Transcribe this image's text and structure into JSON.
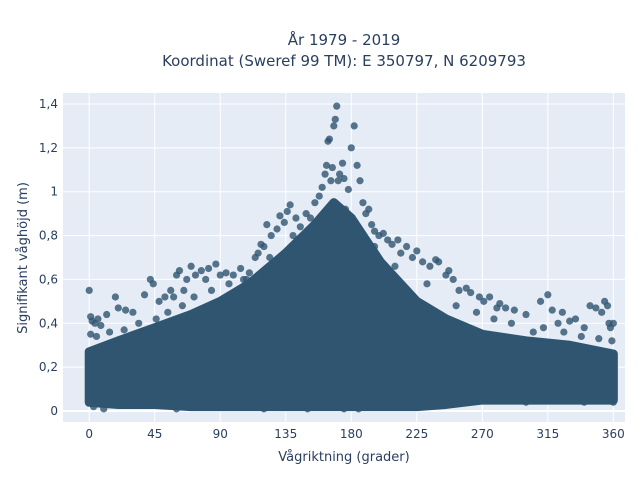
{
  "chart_data": {
    "type": "scatter",
    "title_line1": "År 1979 - 2019",
    "title_line2": "Koordinat (Sweref 99 TM): E 350797, N 6209793",
    "xlabel": "Vågriktning (grader)",
    "ylabel": "Signifikant våghöjd (m)",
    "xlim": [
      -18,
      368
    ],
    "ylim": [
      -0.05,
      1.45
    ],
    "xticks": [
      0,
      45,
      90,
      135,
      180,
      225,
      270,
      315,
      360
    ],
    "xtick_labels": [
      "0",
      "45",
      "90",
      "135",
      "180",
      "225",
      "270",
      "315",
      "360"
    ],
    "yticks": [
      0,
      0.2,
      0.4,
      0.6,
      0.8,
      1.0,
      1.2,
      1.4
    ],
    "ytick_labels": [
      "0",
      "0,2",
      "0,4",
      "0,6",
      "0,8",
      "1",
      "1,2",
      "1,4"
    ],
    "grid": true,
    "marker_color": "#2f5570",
    "plot_bg": "#e5ecf6",
    "core_band": [
      {
        "x": 0,
        "y_low": 0.04,
        "y_high": 0.27
      },
      {
        "x": 20,
        "y_low": 0.03,
        "y_high": 0.32
      },
      {
        "x": 45,
        "y_low": 0.03,
        "y_high": 0.38
      },
      {
        "x": 70,
        "y_low": 0.02,
        "y_high": 0.44
      },
      {
        "x": 90,
        "y_low": 0.02,
        "y_high": 0.5
      },
      {
        "x": 110,
        "y_low": 0.02,
        "y_high": 0.58
      },
      {
        "x": 135,
        "y_low": 0.02,
        "y_high": 0.72
      },
      {
        "x": 155,
        "y_low": 0.02,
        "y_high": 0.85
      },
      {
        "x": 168,
        "y_low": 0.02,
        "y_high": 0.95
      },
      {
        "x": 180,
        "y_low": 0.02,
        "y_high": 0.88
      },
      {
        "x": 200,
        "y_low": 0.02,
        "y_high": 0.68
      },
      {
        "x": 225,
        "y_low": 0.02,
        "y_high": 0.5
      },
      {
        "x": 245,
        "y_low": 0.03,
        "y_high": 0.42
      },
      {
        "x": 270,
        "y_low": 0.05,
        "y_high": 0.35
      },
      {
        "x": 300,
        "y_low": 0.05,
        "y_high": 0.32
      },
      {
        "x": 330,
        "y_low": 0.05,
        "y_high": 0.3
      },
      {
        "x": 360,
        "y_low": 0.05,
        "y_high": 0.26
      }
    ],
    "outlier_points": [
      [
        0,
        0.55
      ],
      [
        1,
        0.43
      ],
      [
        2,
        0.41
      ],
      [
        4,
        0.4
      ],
      [
        6,
        0.42
      ],
      [
        8,
        0.39
      ],
      [
        12,
        0.44
      ],
      [
        18,
        0.52
      ],
      [
        20,
        0.47
      ],
      [
        25,
        0.46
      ],
      [
        30,
        0.45
      ],
      [
        38,
        0.53
      ],
      [
        42,
        0.6
      ],
      [
        44,
        0.58
      ],
      [
        48,
        0.5
      ],
      [
        52,
        0.52
      ],
      [
        56,
        0.55
      ],
      [
        58,
        0.52
      ],
      [
        60,
        0.62
      ],
      [
        62,
        0.64
      ],
      [
        65,
        0.55
      ],
      [
        67,
        0.6
      ],
      [
        70,
        0.66
      ],
      [
        73,
        0.62
      ],
      [
        77,
        0.64
      ],
      [
        80,
        0.6
      ],
      [
        82,
        0.65
      ],
      [
        87,
        0.67
      ],
      [
        90,
        0.62
      ],
      [
        94,
        0.63
      ],
      [
        99,
        0.62
      ],
      [
        104,
        0.65
      ],
      [
        108,
        0.6
      ],
      [
        110,
        0.63
      ],
      [
        114,
        0.7
      ],
      [
        116,
        0.72
      ],
      [
        118,
        0.76
      ],
      [
        120,
        0.75
      ],
      [
        122,
        0.85
      ],
      [
        125,
        0.8
      ],
      [
        129,
        0.83
      ],
      [
        131,
        0.89
      ],
      [
        134,
        0.86
      ],
      [
        136,
        0.91
      ],
      [
        138,
        0.94
      ],
      [
        142,
        0.88
      ],
      [
        145,
        0.84
      ],
      [
        149,
        0.9
      ],
      [
        152,
        0.88
      ],
      [
        155,
        0.95
      ],
      [
        158,
        0.98
      ],
      [
        160,
        1.02
      ],
      [
        162,
        1.08
      ],
      [
        163,
        1.12
      ],
      [
        164,
        1.23
      ],
      [
        165,
        1.24
      ],
      [
        166,
        1.05
      ],
      [
        167,
        1.11
      ],
      [
        168,
        1.3
      ],
      [
        169,
        1.33
      ],
      [
        170,
        1.39
      ],
      [
        171,
        1.05
      ],
      [
        172,
        1.08
      ],
      [
        174,
        1.13
      ],
      [
        175,
        1.06
      ],
      [
        178,
        1.01
      ],
      [
        180,
        1.2
      ],
      [
        182,
        1.3
      ],
      [
        184,
        1.12
      ],
      [
        186,
        1.05
      ],
      [
        188,
        0.95
      ],
      [
        190,
        0.9
      ],
      [
        192,
        0.92
      ],
      [
        194,
        0.85
      ],
      [
        196,
        0.82
      ],
      [
        199,
        0.8
      ],
      [
        202,
        0.81
      ],
      [
        205,
        0.78
      ],
      [
        208,
        0.76
      ],
      [
        212,
        0.78
      ],
      [
        214,
        0.72
      ],
      [
        218,
        0.75
      ],
      [
        222,
        0.7
      ],
      [
        225,
        0.73
      ],
      [
        229,
        0.68
      ],
      [
        234,
        0.66
      ],
      [
        238,
        0.69
      ],
      [
        240,
        0.68
      ],
      [
        245,
        0.62
      ],
      [
        247,
        0.64
      ],
      [
        250,
        0.6
      ],
      [
        254,
        0.55
      ],
      [
        259,
        0.56
      ],
      [
        262,
        0.54
      ],
      [
        268,
        0.52
      ],
      [
        271,
        0.5
      ],
      [
        275,
        0.52
      ],
      [
        280,
        0.47
      ],
      [
        282,
        0.49
      ],
      [
        286,
        0.47
      ],
      [
        292,
        0.46
      ],
      [
        300,
        0.44
      ],
      [
        310,
        0.5
      ],
      [
        315,
        0.53
      ],
      [
        318,
        0.46
      ],
      [
        322,
        0.4
      ],
      [
        325,
        0.45
      ],
      [
        330,
        0.41
      ],
      [
        334,
        0.42
      ],
      [
        340,
        0.38
      ],
      [
        344,
        0.48
      ],
      [
        348,
        0.47
      ],
      [
        352,
        0.45
      ],
      [
        354,
        0.5
      ],
      [
        356,
        0.48
      ],
      [
        357,
        0.4
      ],
      [
        358,
        0.38
      ],
      [
        360,
        0.4
      ],
      [
        1,
        0.35
      ],
      [
        5,
        0.34
      ],
      [
        14,
        0.36
      ],
      [
        24,
        0.37
      ],
      [
        34,
        0.4
      ],
      [
        46,
        0.42
      ],
      [
        54,
        0.45
      ],
      [
        64,
        0.48
      ],
      [
        72,
        0.52
      ],
      [
        84,
        0.55
      ],
      [
        96,
        0.58
      ],
      [
        106,
        0.6
      ],
      [
        124,
        0.7
      ],
      [
        140,
        0.8
      ],
      [
        150,
        0.82
      ],
      [
        176,
        0.92
      ],
      [
        196,
        0.75
      ],
      [
        210,
        0.66
      ],
      [
        232,
        0.58
      ],
      [
        252,
        0.48
      ],
      [
        266,
        0.45
      ],
      [
        278,
        0.42
      ],
      [
        290,
        0.4
      ],
      [
        305,
        0.36
      ],
      [
        312,
        0.38
      ],
      [
        326,
        0.36
      ],
      [
        338,
        0.34
      ],
      [
        350,
        0.33
      ],
      [
        359,
        0.32
      ],
      [
        3,
        0.02
      ],
      [
        10,
        0.01
      ],
      [
        60,
        0.01
      ],
      [
        120,
        0.01
      ],
      [
        150,
        0.01
      ],
      [
        175,
        0.01
      ],
      [
        185,
        0.01
      ],
      [
        230,
        0.02
      ],
      [
        260,
        0.04
      ],
      [
        300,
        0.04
      ],
      [
        340,
        0.04
      ],
      [
        360,
        0.04
      ]
    ]
  }
}
